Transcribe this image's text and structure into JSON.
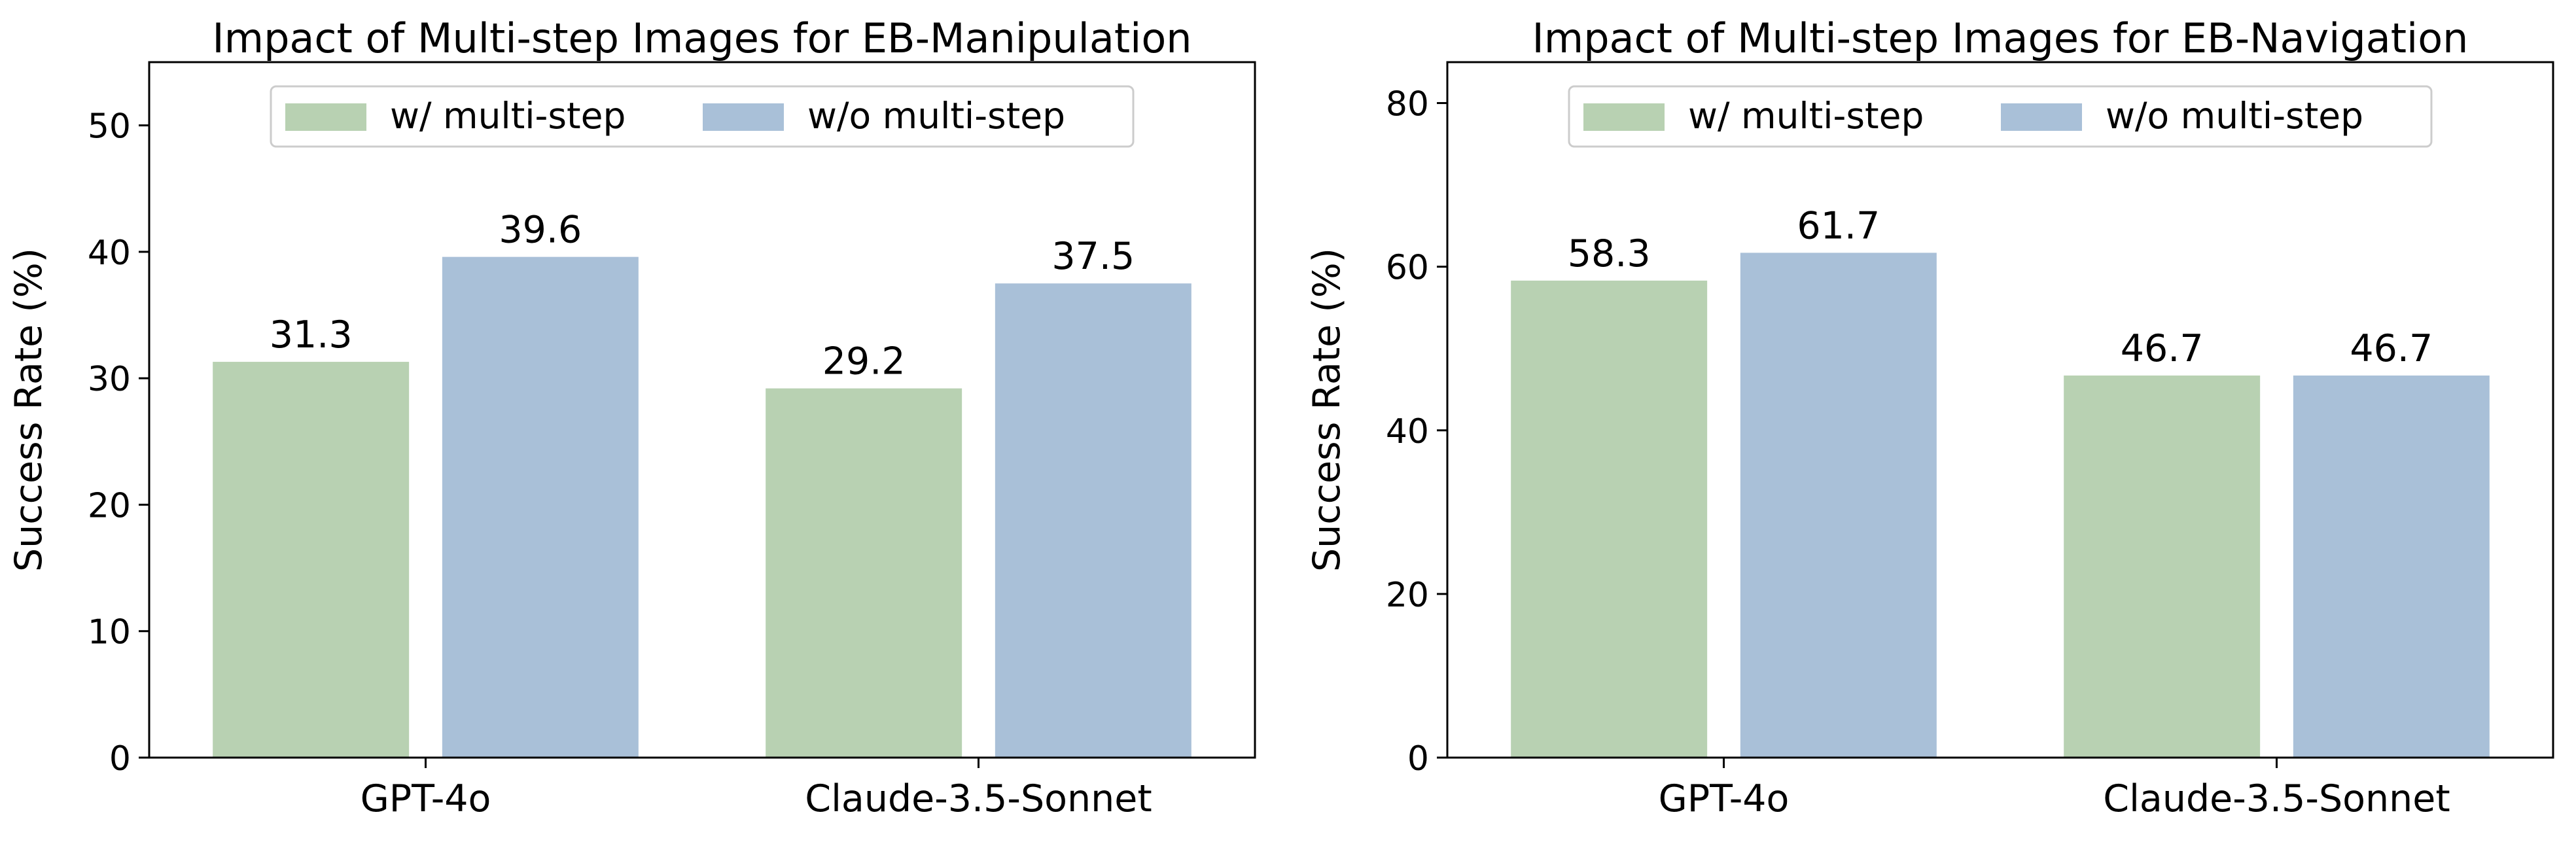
{
  "colors": {
    "with": "#b8d1b2",
    "without": "#a9c0d8",
    "axis": "#000000",
    "legend_border": "#cccccc"
  },
  "chart_data": [
    {
      "type": "bar",
      "title": "Impact of Multi-step Images for EB-Manipulation",
      "ylabel": "Success Rate (%)",
      "categories": [
        "GPT-4o",
        "Claude-3.5-Sonnet"
      ],
      "series": [
        {
          "name": "w/ multi-step",
          "values": [
            31.3,
            29.2
          ]
        },
        {
          "name": "w/o multi-step",
          "values": [
            39.6,
            37.5
          ]
        }
      ],
      "data_labels": [
        [
          "31.3",
          "29.2"
        ],
        [
          "39.6",
          "37.5"
        ]
      ],
      "ylim": [
        0,
        55
      ],
      "yticks": [
        0,
        10,
        20,
        30,
        40,
        50
      ],
      "ytick_labels": [
        "0",
        "10",
        "20",
        "30",
        "40",
        "50"
      ],
      "grid": false,
      "legend": "upper-center"
    },
    {
      "type": "bar",
      "title": "Impact of Multi-step Images for EB-Navigation",
      "ylabel": "Success Rate (%)",
      "categories": [
        "GPT-4o",
        "Claude-3.5-Sonnet"
      ],
      "series": [
        {
          "name": "w/ multi-step",
          "values": [
            58.3,
            46.7
          ]
        },
        {
          "name": "w/o multi-step",
          "values": [
            61.7,
            46.7
          ]
        }
      ],
      "data_labels": [
        [
          "58.3",
          "46.7"
        ],
        [
          "61.7",
          "46.7"
        ]
      ],
      "ylim": [
        0,
        85
      ],
      "yticks": [
        0,
        20,
        40,
        60,
        80
      ],
      "ytick_labels": [
        "0",
        "20",
        "40",
        "60",
        "80"
      ],
      "grid": false,
      "legend": "upper-center"
    }
  ]
}
